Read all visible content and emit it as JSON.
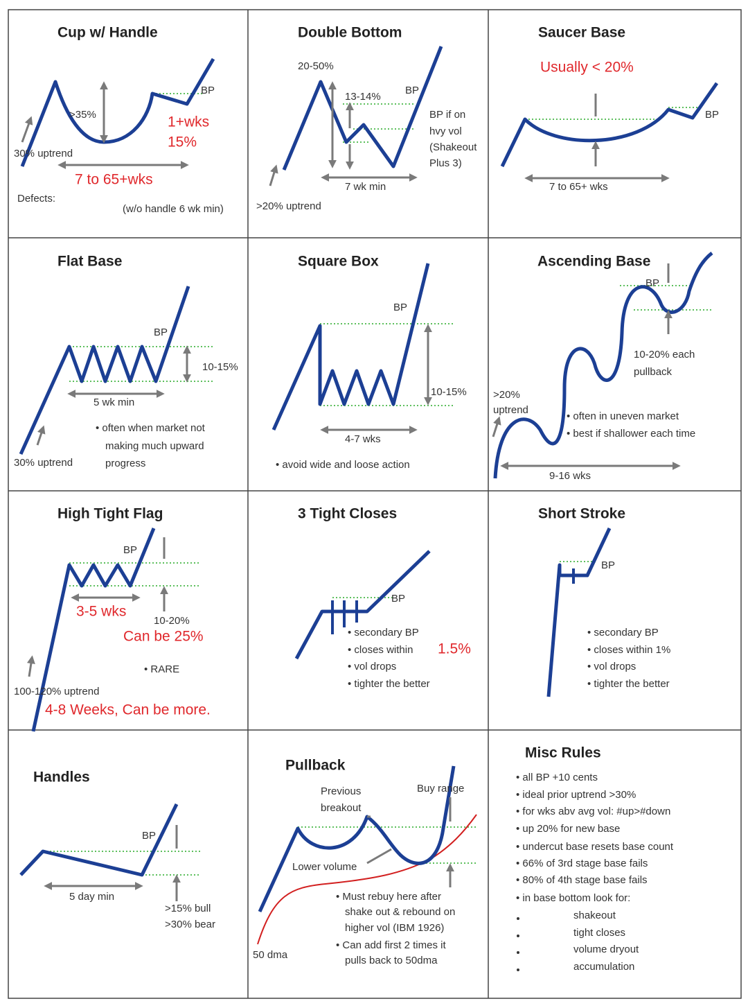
{
  "cells": [
    {
      "title": "Cup w/ Handle",
      "labels": [
        "BP",
        ">35%",
        "1+wks",
        "15%",
        "30% uptrend",
        "7 to 65+wks",
        "Defects:",
        "(w/o handle 6 wk min)"
      ]
    },
    {
      "title": "Double Bottom",
      "labels": [
        "20-50%",
        "13-14%",
        "BP",
        "BP if on",
        "hvy vol",
        "(Shakeout",
        "Plus 3)",
        "7 wk min",
        ">20% uptrend"
      ]
    },
    {
      "title": "Saucer Base",
      "labels": [
        "Usually < 20%",
        "BP",
        "7 to 65+ wks"
      ]
    },
    {
      "title": "Flat Base",
      "labels": [
        "BP",
        "10-15%",
        "5 wk min",
        "• often when market not",
        "making much upward",
        "progress",
        "30% uptrend"
      ]
    },
    {
      "title": "Square Box",
      "labels": [
        "BP",
        "10-15%",
        "4-7 wks",
        "• avoid wide and loose action"
      ]
    },
    {
      "title": "Ascending Base",
      "labels": [
        "BP",
        "10-20% each",
        "pullback",
        ">20%",
        "uptrend",
        "• often in uneven market",
        "• best if shallower each time",
        "9-16 wks"
      ]
    },
    {
      "title": "High Tight Flag",
      "labels": [
        "BP",
        "3-5 wks",
        "10-20%",
        "Can be 25%",
        "• RARE",
        "100-120% uptrend",
        "4-8 Weeks, Can be more."
      ]
    },
    {
      "title": "3 Tight Closes",
      "labels": [
        "BP",
        "• secondary BP",
        "• closes within",
        "1.5%",
        "• vol drops",
        "• tighter the better"
      ]
    },
    {
      "title": "Short Stroke",
      "labels": [
        "BP",
        "• secondary BP",
        "• closes within 1%",
        "• vol drops",
        "• tighter the better"
      ]
    },
    {
      "title": "Handles",
      "labels": [
        "BP",
        "5 day min",
        ">15% bull",
        ">30% bear"
      ]
    },
    {
      "title": "Pullback",
      "labels": [
        "Previous",
        "breakout",
        "Buy range",
        "Lower volume",
        "• Must rebuy here after",
        "shake out & rebound on",
        "higher vol (IBM 1926)",
        "• Can add first 2 times it",
        "pulls back to 50dma",
        "50 dma"
      ]
    },
    {
      "title": "Misc Rules",
      "labels": [
        "• all BP +10 cents",
        "• ideal prior uptrend >30%",
        "• for wks abv avg vol: #up>#down",
        "• up 20% for new base",
        "• undercut base resets base count",
        "• 66% of 3rd stage base fails",
        "• 80% of 4th stage base fails",
        "• in base bottom look for:",
        "shakeout",
        "tight closes",
        "volume dryout",
        "accumulation"
      ]
    }
  ]
}
